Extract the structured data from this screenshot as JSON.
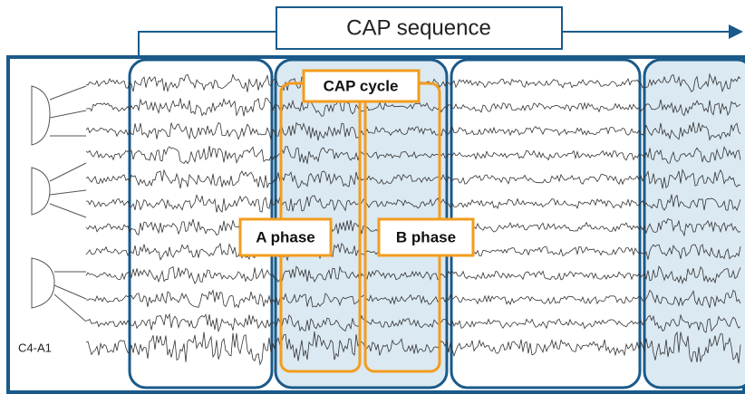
{
  "header": {
    "title": "CAP sequence"
  },
  "labels": {
    "cycle": "CAP cycle",
    "a_phase": "A phase",
    "b_phase": "B phase",
    "channel": "C4-A1"
  }
}
